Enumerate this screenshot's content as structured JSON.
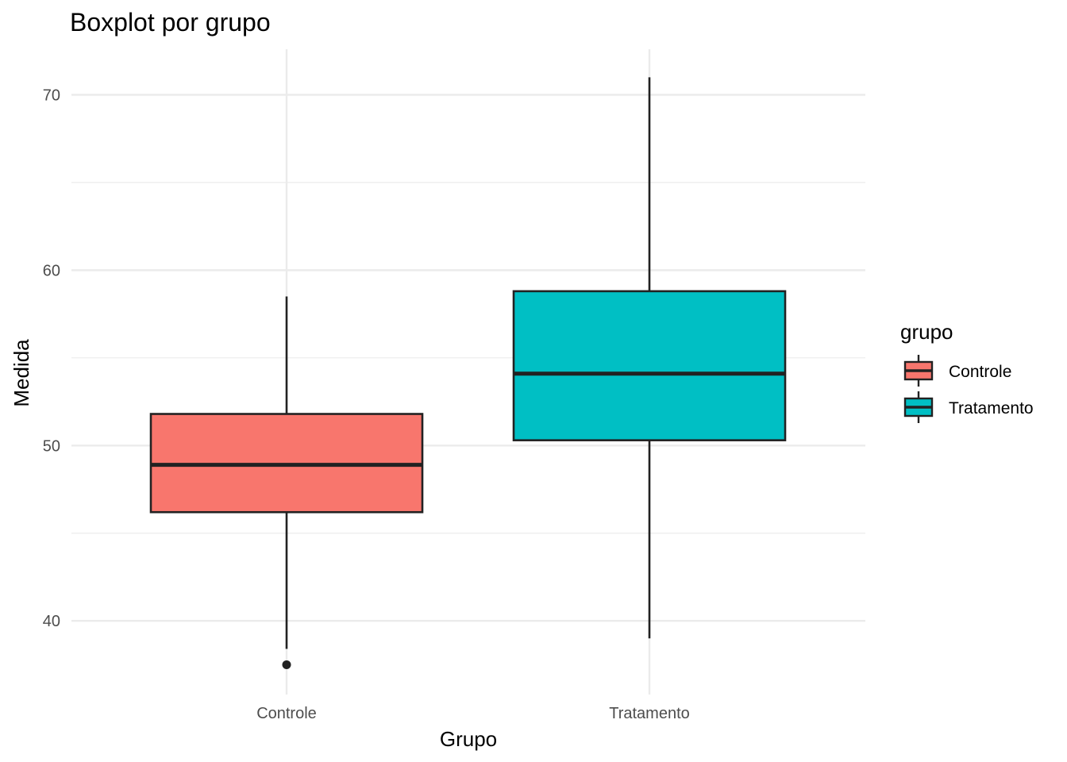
{
  "chart_data": {
    "type": "boxplot",
    "title": "Boxplot por grupo",
    "xlabel": "Grupo",
    "ylabel": "Medida",
    "ylim": [
      35.8,
      72.6
    ],
    "y_major_ticks": [
      40,
      50,
      60,
      70
    ],
    "y_minor_ticks": [
      45,
      55,
      65
    ],
    "grid": true,
    "legend": {
      "title": "grupo",
      "placement": "right"
    },
    "categories": [
      "Controle",
      "Tratamento"
    ],
    "series": [
      {
        "name": "Controle",
        "color": "#F8766D",
        "whisker_low": 38.4,
        "q1": 46.2,
        "median": 48.9,
        "q3": 51.8,
        "whisker_high": 58.5,
        "outliers": [
          37.5
        ]
      },
      {
        "name": "Tratamento",
        "color": "#00BFC4",
        "whisker_low": 39.0,
        "q1": 50.3,
        "median": 54.1,
        "q3": 58.8,
        "whisker_high": 71.0,
        "outliers": []
      }
    ]
  }
}
